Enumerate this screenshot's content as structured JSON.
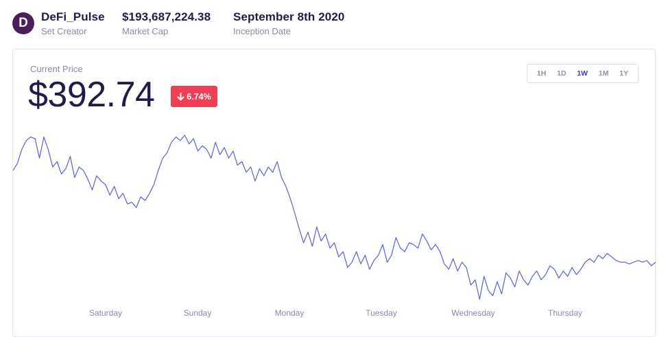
{
  "header": {
    "logo_letter": "D",
    "creator": {
      "value": "DeFi_Pulse",
      "label": "Set Creator"
    },
    "market_cap": {
      "value": "$193,687,224.38",
      "label": "Market Cap"
    },
    "inception": {
      "value": "September 8th 2020",
      "label": "Inception Date"
    }
  },
  "price": {
    "label": "Current Price",
    "value": "$392.74",
    "change": "6.74%",
    "change_direction": "down"
  },
  "ranges": {
    "items": [
      "1H",
      "1D",
      "1W",
      "1M",
      "1Y"
    ],
    "active": "1W"
  },
  "colors": {
    "line": "#5a5fd6",
    "badge": "#f03e54",
    "logo": "#4b1f5e",
    "active_range": "#3d3bb8"
  },
  "chart_data": {
    "type": "line",
    "x_labels": [
      "Saturday",
      "Sunday",
      "Monday",
      "Tuesday",
      "Wednesday",
      "Thursday"
    ],
    "series": [
      {
        "values": [
          418,
          422,
          430,
          435,
          437,
          436,
          425,
          437,
          430,
          420,
          423,
          416,
          419,
          426,
          414,
          420,
          418,
          413,
          407,
          415,
          412,
          410,
          404,
          409,
          402,
          405,
          399,
          400,
          397,
          403,
          401,
          405,
          410,
          418,
          425,
          428,
          434,
          437,
          435,
          438,
          433,
          436,
          429,
          432,
          430,
          425,
          434,
          427,
          431,
          425,
          429,
          421,
          423,
          417,
          420,
          412,
          419,
          415,
          420,
          417,
          423,
          414,
          409,
          402,
          394,
          385,
          377,
          383,
          375,
          386,
          378,
          382,
          374,
          377,
          369,
          372,
          363,
          366,
          372,
          365,
          370,
          362,
          367,
          370,
          376,
          366,
          370,
          380,
          374,
          372,
          377,
          376,
          374,
          382,
          378,
          373,
          376,
          372,
          365,
          362,
          368,
          361,
          366,
          363,
          353,
          356,
          345,
          358,
          350,
          347,
          355,
          348,
          360,
          357,
          352,
          361,
          356,
          353,
          358,
          361,
          356,
          359,
          364,
          362,
          357,
          361,
          358,
          363,
          359,
          362,
          366,
          368,
          366,
          370,
          368,
          371,
          369,
          367,
          366,
          366,
          365,
          366,
          367,
          366,
          367,
          364,
          366
        ]
      }
    ]
  }
}
